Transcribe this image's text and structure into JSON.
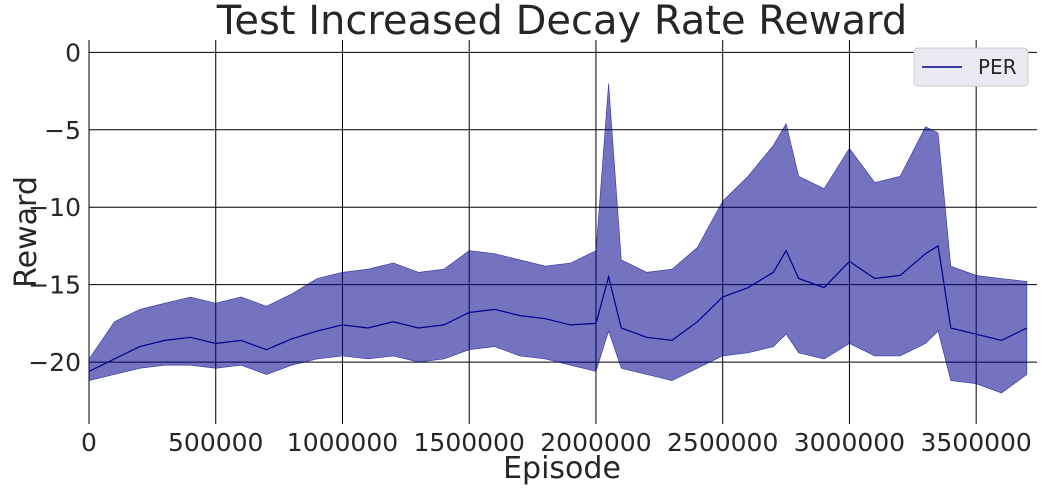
{
  "chart_data": {
    "type": "line",
    "title": "Test Increased Decay Rate Reward",
    "xlabel": "Episode",
    "ylabel": "Reward",
    "xlim": [
      0,
      3740000
    ],
    "ylim": [
      -24,
      0.8
    ],
    "xticks": [
      0,
      500000,
      1000000,
      1500000,
      2000000,
      2500000,
      3000000,
      3500000
    ],
    "xtick_labels": [
      "0",
      "500000",
      "1000000",
      "1500000",
      "2000000",
      "2500000",
      "3000000",
      "3500000"
    ],
    "yticks": [
      0,
      -5,
      -10,
      -15,
      -20
    ],
    "ytick_labels": [
      "0",
      "−5",
      "−10",
      "−15",
      "−20"
    ],
    "grid": true,
    "legend_position": "top-right",
    "band": "shaded region around mean line (min/max)",
    "series": [
      {
        "name": "PER",
        "color": "#00008b",
        "x": [
          0,
          100000,
          200000,
          300000,
          400000,
          500000,
          600000,
          700000,
          800000,
          900000,
          1000000,
          1100000,
          1200000,
          1300000,
          1400000,
          1500000,
          1600000,
          1700000,
          1800000,
          1900000,
          2000000,
          2050000,
          2100000,
          2200000,
          2300000,
          2400000,
          2500000,
          2600000,
          2700000,
          2750000,
          2800000,
          2900000,
          3000000,
          3100000,
          3200000,
          3300000,
          3350000,
          3400000,
          3500000,
          3600000,
          3700000
        ],
        "values": [
          -20.6,
          -19.8,
          -19.0,
          -18.6,
          -18.4,
          -18.8,
          -18.6,
          -19.2,
          -18.5,
          -18.0,
          -17.6,
          -17.8,
          -17.4,
          -17.8,
          -17.6,
          -16.8,
          -16.6,
          -17.0,
          -17.2,
          -17.6,
          -17.5,
          -14.5,
          -17.8,
          -18.4,
          -18.6,
          -17.4,
          -15.8,
          -15.2,
          -14.2,
          -12.8,
          -14.6,
          -15.2,
          -13.5,
          -14.6,
          -14.4,
          -13.0,
          -12.5,
          -17.8,
          -18.2,
          -18.6,
          -17.8
        ],
        "lower": [
          -21.2,
          -20.8,
          -20.4,
          -20.2,
          -20.2,
          -20.4,
          -20.2,
          -20.8,
          -20.2,
          -19.8,
          -19.6,
          -19.8,
          -19.6,
          -20.0,
          -19.8,
          -19.2,
          -19.0,
          -19.6,
          -19.8,
          -20.2,
          -20.6,
          -18.0,
          -20.4,
          -20.8,
          -21.2,
          -20.4,
          -19.6,
          -19.4,
          -19.0,
          -18.2,
          -19.4,
          -19.8,
          -18.8,
          -19.6,
          -19.6,
          -18.8,
          -18.0,
          -21.2,
          -21.4,
          -22.0,
          -20.8
        ],
        "upper": [
          -19.8,
          -17.4,
          -16.6,
          -16.2,
          -15.8,
          -16.2,
          -15.8,
          -16.4,
          -15.6,
          -14.6,
          -14.2,
          -14.0,
          -13.6,
          -14.2,
          -14.0,
          -12.8,
          -13.0,
          -13.4,
          -13.8,
          -13.6,
          -12.8,
          -2.0,
          -13.4,
          -14.2,
          -14.0,
          -12.6,
          -9.6,
          -8.0,
          -6.0,
          -4.6,
          -8.0,
          -8.8,
          -6.2,
          -8.4,
          -8.0,
          -4.8,
          -5.2,
          -13.8,
          -14.4,
          -14.6,
          -14.8
        ]
      }
    ]
  }
}
